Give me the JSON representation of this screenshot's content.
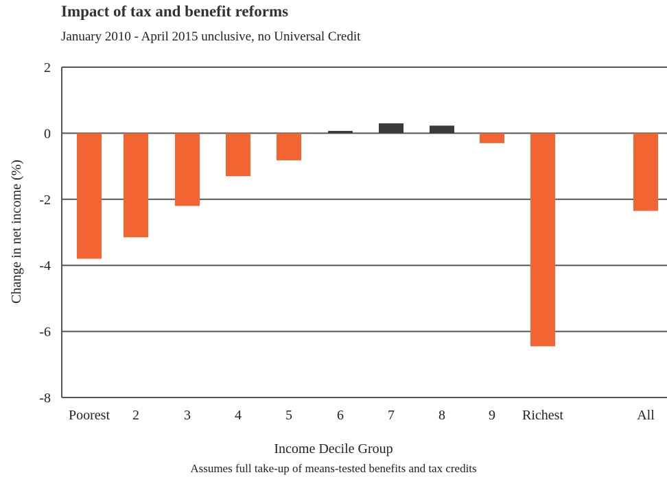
{
  "chart_data": {
    "type": "bar",
    "title": "Impact of tax and benefit reforms",
    "subtitle": "January 2010 - April 2015 unclusive, no Universal Credit",
    "xlabel": "Income Decile Group",
    "ylabel": "Change in net income (%)",
    "note": "Assumes full take-up of means-tested benefits and tax credits",
    "categories": [
      "Poorest",
      "2",
      "3",
      "4",
      "5",
      "6",
      "7",
      "8",
      "9",
      "Richest",
      "All"
    ],
    "values": [
      -3.8,
      -3.15,
      -2.2,
      -1.3,
      -0.82,
      0.07,
      0.3,
      0.23,
      -0.3,
      -6.45,
      -2.35
    ],
    "ylim": [
      -8,
      2
    ],
    "yticks": [
      2,
      0,
      -2,
      -4,
      -6,
      -8
    ],
    "grid": true,
    "colors": {
      "negative": "#f26532",
      "positive": "#3a3a3a",
      "grid": "#555555"
    }
  }
}
